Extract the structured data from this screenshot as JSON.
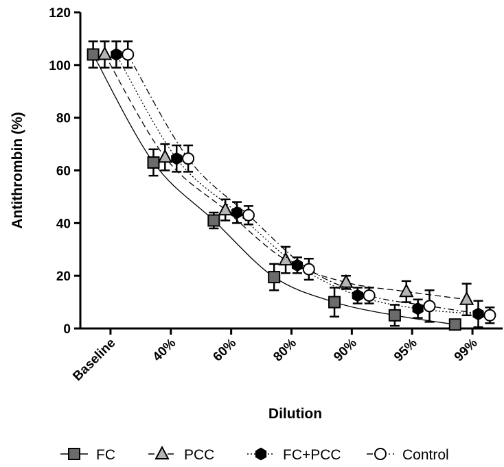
{
  "chart_data": {
    "type": "line",
    "title": "",
    "xlabel": "Dilution",
    "ylabel": "Antithrombin (%)",
    "categories": [
      "Baseline",
      "40%",
      "60%",
      "80%",
      "90%",
      "95%",
      "99%"
    ],
    "ylim": [
      0,
      120
    ],
    "yticks": [
      0,
      20,
      40,
      60,
      80,
      100,
      120
    ],
    "grid": false,
    "legend_position": "bottom",
    "series": [
      {
        "name": "FC",
        "marker": "square",
        "line_style": "solid",
        "fill": "#6b6b6b",
        "values": [
          104,
          63,
          41,
          19.5,
          10,
          5,
          1.5
        ],
        "error": [
          5,
          5,
          3,
          5,
          5.5,
          4,
          0
        ]
      },
      {
        "name": "PCC",
        "marker": "triangle",
        "line_style": "dashed",
        "fill": "#b5b5b5",
        "values": [
          104,
          65,
          45,
          26,
          17.5,
          14,
          11
        ],
        "error": [
          5,
          5,
          4,
          5,
          2.5,
          4,
          6
        ]
      },
      {
        "name": "FC+PCC",
        "marker": "hexagon",
        "line_style": "dotted",
        "fill": "#000000",
        "values": [
          104,
          64.5,
          44,
          24,
          12.5,
          7.5,
          5.5
        ],
        "error": [
          5,
          5,
          4,
          3,
          3,
          3.5,
          5
        ]
      },
      {
        "name": "Control",
        "marker": "circle-open",
        "line_style": "dash-dot",
        "fill": "#ffffff",
        "values": [
          104,
          64.5,
          43,
          22.5,
          12.5,
          8.5,
          5
        ],
        "error": [
          5,
          5,
          3.5,
          4,
          3,
          6,
          3
        ]
      }
    ]
  }
}
